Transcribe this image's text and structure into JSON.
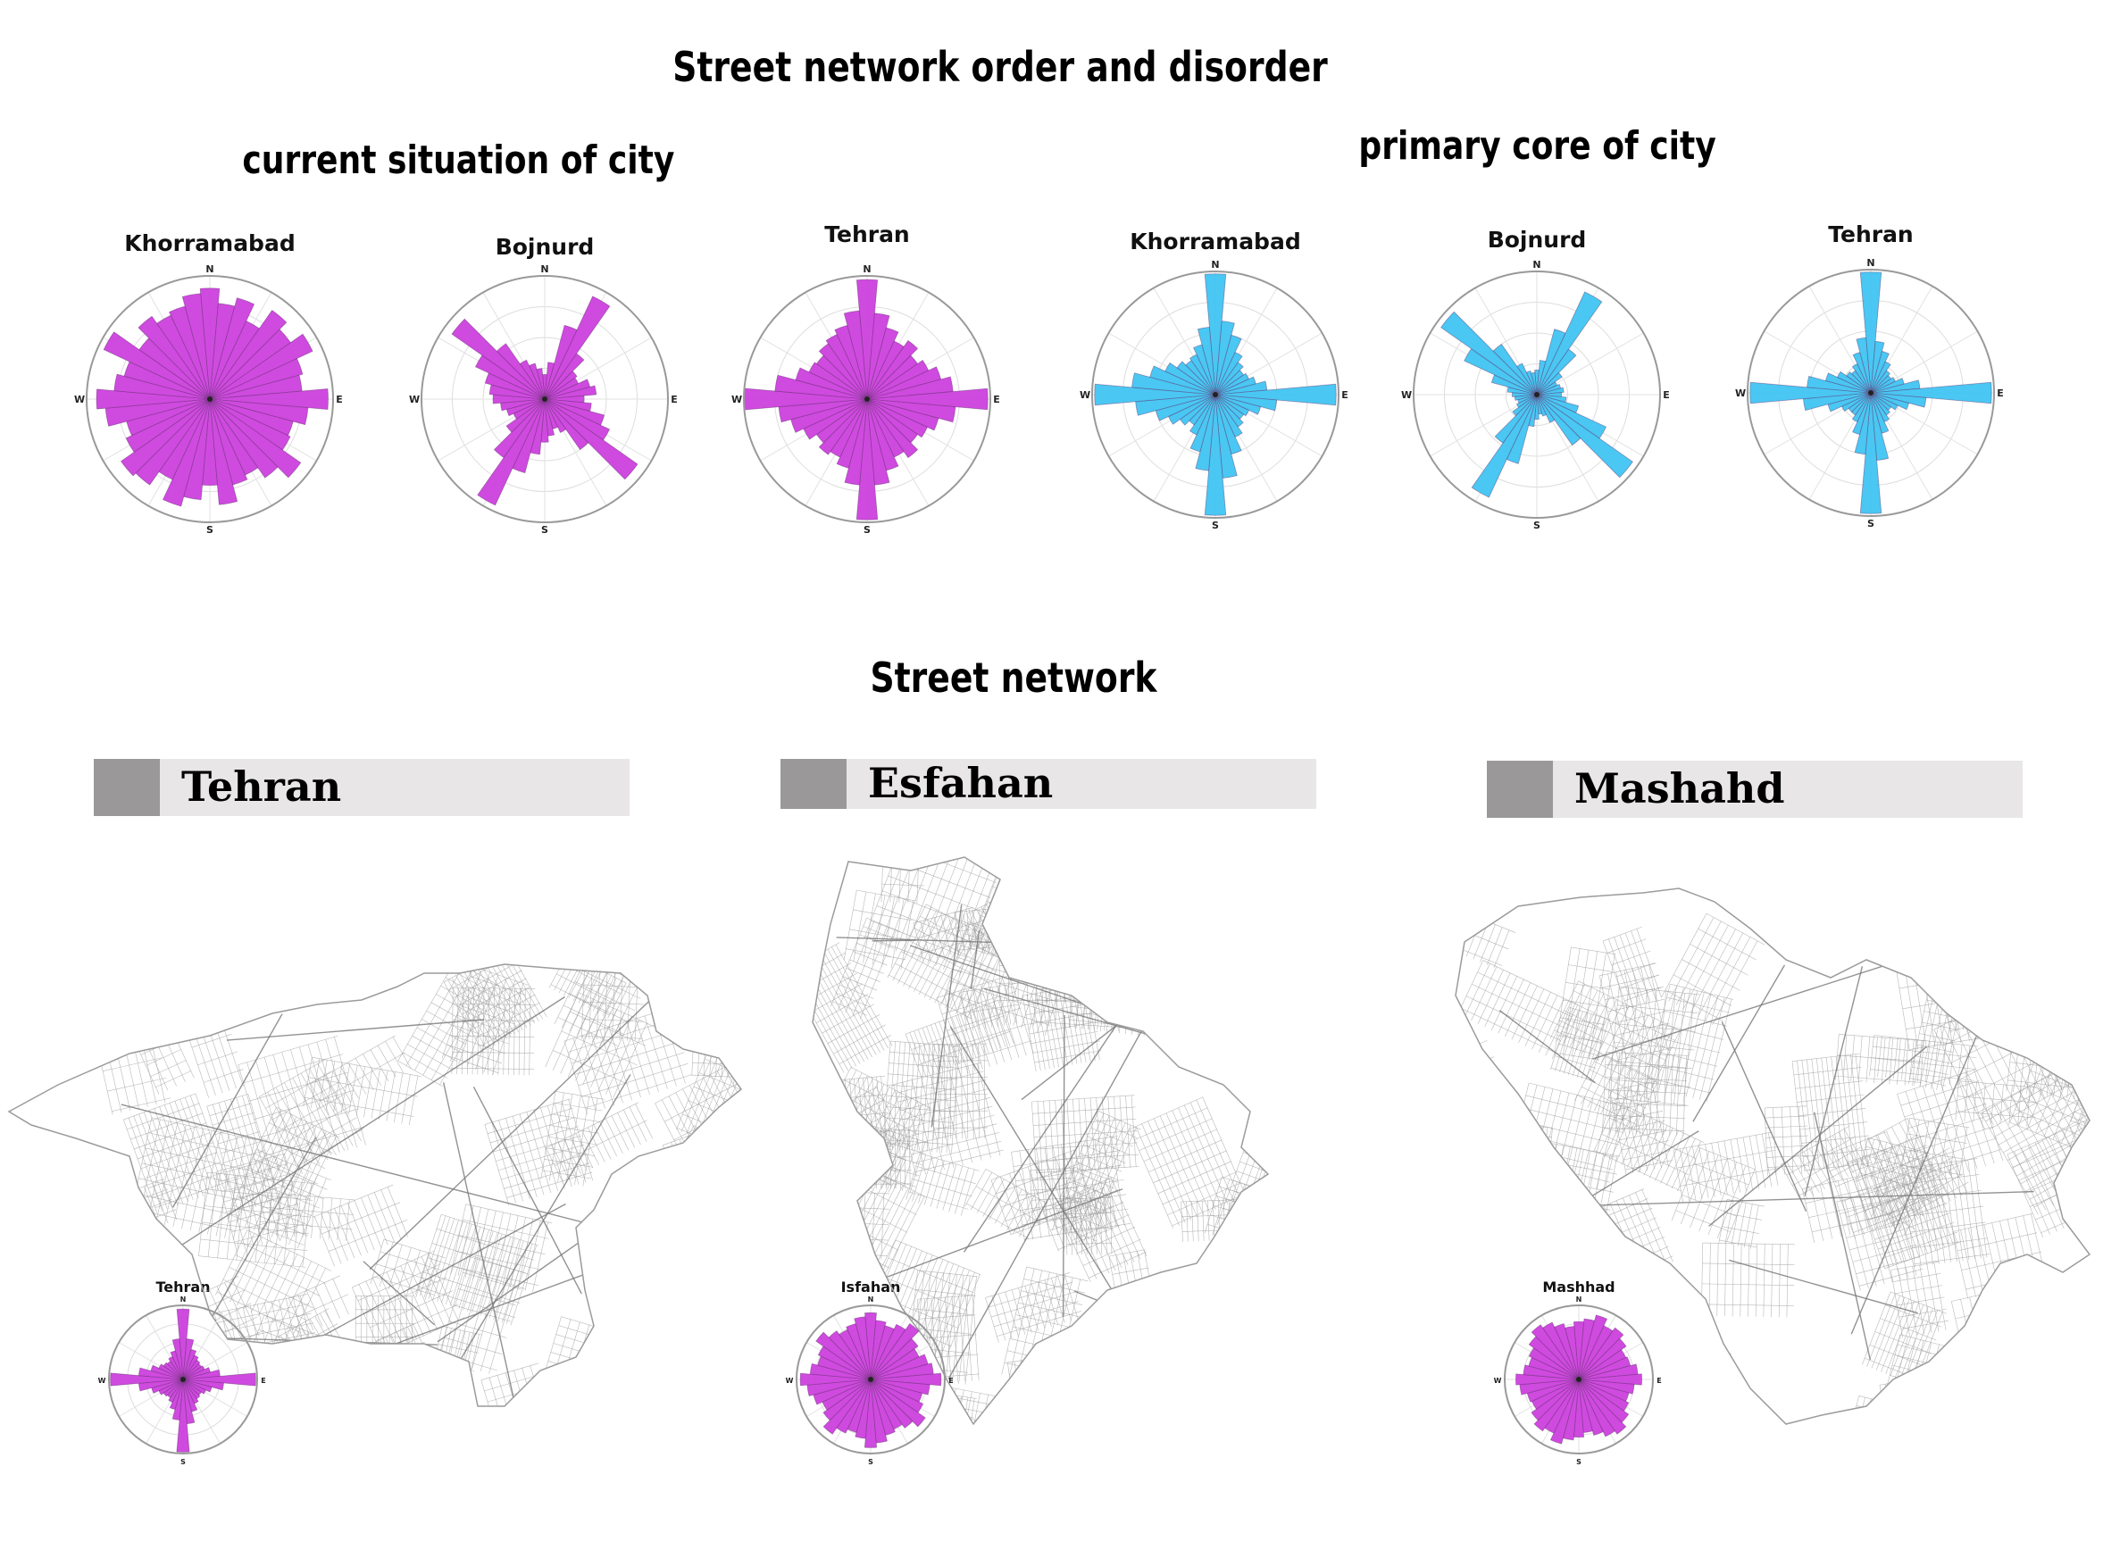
{
  "headings": {
    "main": "Street network order and disorder",
    "current": "current situation of city",
    "core": "primary core of city",
    "network": "Street network"
  },
  "banners": [
    "Tehran",
    "Esfahan",
    "Mashahd"
  ],
  "colors": {
    "magenta": "#cc40dd",
    "cyan": "#40c4f2",
    "ring": "#999999",
    "road": "#9b9b9b"
  },
  "chart_data": [
    {
      "type": "polar-bar",
      "title": "Khorramabad",
      "group": "current situation of city",
      "color": "magenta",
      "compass": [
        "N",
        "E",
        "S",
        "W"
      ],
      "values": [
        0.9,
        0.78,
        0.85,
        0.7,
        0.88,
        0.8,
        0.92,
        0.78,
        0.75,
        0.96,
        0.8,
        0.7,
        0.72,
        0.9,
        0.78,
        0.68,
        0.72,
        0.86,
        0.7,
        0.82,
        0.9,
        0.72,
        0.85,
        0.88,
        0.75,
        0.7,
        0.85,
        0.92,
        0.78,
        0.72,
        0.95,
        0.7,
        0.82,
        0.75,
        0.78,
        0.86
      ]
    },
    {
      "type": "polar-bar",
      "title": "Bojnurd",
      "group": "current situation of city",
      "color": "magenta",
      "compass": [
        "N",
        "E",
        "S",
        "W"
      ],
      "values": [
        0.2,
        0.3,
        0.62,
        0.92,
        0.45,
        0.32,
        0.3,
        0.38,
        0.42,
        0.32,
        0.38,
        0.5,
        0.58,
        0.92,
        0.5,
        0.3,
        0.25,
        0.3,
        0.35,
        0.45,
        0.62,
        0.95,
        0.58,
        0.38,
        0.28,
        0.32,
        0.36,
        0.42,
        0.45,
        0.5,
        0.62,
        0.92,
        0.55,
        0.35,
        0.3,
        0.25
      ]
    },
    {
      "type": "polar-bar",
      "title": "Tehran",
      "group": "current situation of city",
      "color": "magenta",
      "compass": [
        "N",
        "E",
        "S",
        "W"
      ],
      "values": [
        0.97,
        0.7,
        0.6,
        0.52,
        0.58,
        0.5,
        0.55,
        0.62,
        0.7,
        0.98,
        0.72,
        0.6,
        0.54,
        0.5,
        0.58,
        0.52,
        0.6,
        0.7,
        0.98,
        0.7,
        0.58,
        0.52,
        0.55,
        0.5,
        0.57,
        0.64,
        0.72,
        1.0,
        0.75,
        0.6,
        0.52,
        0.5,
        0.55,
        0.58,
        0.62,
        0.72
      ]
    },
    {
      "type": "polar-bar",
      "title": "Khorramabad",
      "group": "primary core of city",
      "color": "cyan",
      "compass": [
        "N",
        "E",
        "S",
        "W"
      ],
      "values": [
        0.98,
        0.6,
        0.5,
        0.38,
        0.32,
        0.28,
        0.3,
        0.34,
        0.42,
        0.98,
        0.5,
        0.38,
        0.3,
        0.28,
        0.32,
        0.38,
        0.5,
        0.68,
        0.98,
        0.62,
        0.48,
        0.36,
        0.3,
        0.35,
        0.42,
        0.5,
        0.65,
        0.98,
        0.68,
        0.55,
        0.45,
        0.38,
        0.34,
        0.36,
        0.42,
        0.55
      ]
    },
    {
      "type": "polar-bar",
      "title": "Bojnurd",
      "group": "primary core of city",
      "color": "cyan",
      "compass": [
        "N",
        "E",
        "S",
        "W"
      ],
      "values": [
        0.2,
        0.28,
        0.55,
        0.92,
        0.45,
        0.25,
        0.18,
        0.2,
        0.22,
        0.2,
        0.24,
        0.35,
        0.62,
        0.95,
        0.5,
        0.25,
        0.18,
        0.16,
        0.2,
        0.26,
        0.58,
        0.92,
        0.48,
        0.24,
        0.18,
        0.16,
        0.18,
        0.2,
        0.24,
        0.38,
        0.65,
        0.95,
        0.5,
        0.28,
        0.2,
        0.18
      ]
    },
    {
      "type": "polar-bar",
      "title": "Tehran",
      "group": "primary core of city",
      "color": "cyan",
      "compass": [
        "N",
        "E",
        "S",
        "W"
      ],
      "values": [
        0.98,
        0.42,
        0.35,
        0.28,
        0.22,
        0.2,
        0.22,
        0.28,
        0.4,
        0.98,
        0.45,
        0.32,
        0.24,
        0.2,
        0.22,
        0.26,
        0.34,
        0.55,
        0.98,
        0.5,
        0.35,
        0.26,
        0.22,
        0.22,
        0.26,
        0.36,
        0.55,
        0.98,
        0.52,
        0.38,
        0.3,
        0.24,
        0.22,
        0.26,
        0.34,
        0.45
      ]
    },
    {
      "type": "polar-bar",
      "title": "Tehran",
      "group": "Street network",
      "color": "magenta",
      "compass": [
        "N",
        "E",
        "S",
        "W"
      ],
      "values": [
        0.95,
        0.55,
        0.42,
        0.36,
        0.32,
        0.3,
        0.32,
        0.38,
        0.5,
        0.98,
        0.55,
        0.4,
        0.34,
        0.3,
        0.32,
        0.36,
        0.45,
        0.6,
        0.98,
        0.55,
        0.42,
        0.34,
        0.3,
        0.32,
        0.36,
        0.44,
        0.6,
        0.98,
        0.6,
        0.45,
        0.36,
        0.32,
        0.3,
        0.34,
        0.4,
        0.55
      ]
    },
    {
      "type": "polar-bar",
      "title": "Isfahan",
      "group": "Street network",
      "color": "magenta",
      "compass": [
        "N",
        "E",
        "S",
        "W"
      ],
      "values": [
        0.9,
        0.8,
        0.75,
        0.82,
        0.92,
        0.78,
        0.72,
        0.8,
        0.85,
        0.95,
        0.8,
        0.72,
        0.78,
        0.9,
        0.8,
        0.74,
        0.78,
        0.86,
        0.92,
        0.8,
        0.74,
        0.8,
        0.9,
        0.78,
        0.72,
        0.8,
        0.86,
        0.95,
        0.82,
        0.74,
        0.78,
        0.9,
        0.8,
        0.74,
        0.78,
        0.85
      ]
    },
    {
      "type": "polar-bar",
      "title": "Mashhad",
      "group": "Street network",
      "color": "magenta",
      "compass": [
        "N",
        "E",
        "S",
        "W"
      ],
      "values": [
        0.78,
        0.82,
        0.9,
        0.8,
        0.85,
        0.78,
        0.7,
        0.72,
        0.8,
        0.85,
        0.75,
        0.7,
        0.74,
        0.82,
        0.9,
        0.85,
        0.78,
        0.72,
        0.78,
        0.82,
        0.9,
        0.8,
        0.85,
        0.78,
        0.7,
        0.72,
        0.8,
        0.85,
        0.75,
        0.7,
        0.74,
        0.82,
        0.9,
        0.85,
        0.78,
        0.72
      ]
    }
  ]
}
